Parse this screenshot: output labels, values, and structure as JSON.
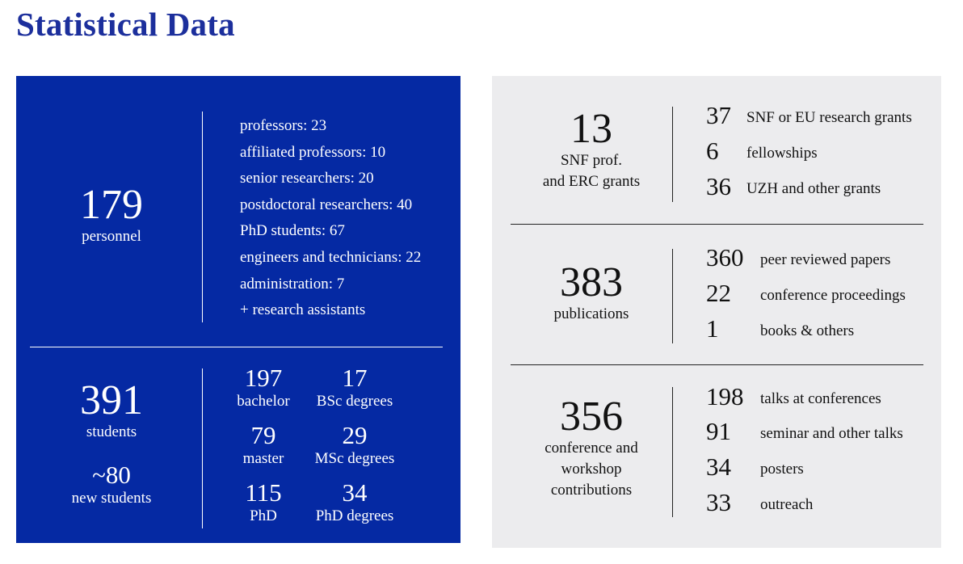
{
  "page_title": "Statistical Data",
  "personnel": {
    "total": "179",
    "label": "personnel",
    "breakdown": [
      "professors: 23",
      "affiliated professors: 10",
      "senior researchers: 20",
      "postdoctoral researchers: 40",
      "PhD students: 67",
      "engineers and technicians: 22",
      "administration: 7",
      "+ research assistants"
    ]
  },
  "students": {
    "total": "391",
    "label": "students",
    "new_total": "~80",
    "new_label": "new students",
    "grid": [
      {
        "enrolled": "197",
        "enrolled_label": "bachelor",
        "degrees": "17",
        "degrees_label": "BSc degrees"
      },
      {
        "enrolled": "79",
        "enrolled_label": "master",
        "degrees": "29",
        "degrees_label": "MSc degrees"
      },
      {
        "enrolled": "115",
        "enrolled_label": "PhD",
        "degrees": "34",
        "degrees_label": "PhD degrees"
      }
    ]
  },
  "grants": {
    "total": "13",
    "label_line1": "SNF prof.",
    "label_line2": "and ERC grants",
    "items": [
      {
        "value": "37",
        "label": "SNF or EU research grants"
      },
      {
        "value": "6",
        "label": "fellowships"
      },
      {
        "value": "36",
        "label": "UZH and other grants"
      }
    ]
  },
  "publications": {
    "total": "383",
    "label": "publications",
    "items": [
      {
        "value": "360",
        "label": "peer reviewed papers"
      },
      {
        "value": "22",
        "label": "conference proceedings"
      },
      {
        "value": "1",
        "label": "books & others"
      }
    ]
  },
  "contributions": {
    "total": "356",
    "label_line1": "conference and",
    "label_line2": "workshop",
    "label_line3": "contributions",
    "items": [
      {
        "value": "198",
        "label": "talks at conferences"
      },
      {
        "value": "91",
        "label": "seminar and other talks"
      },
      {
        "value": "34",
        "label": "posters"
      },
      {
        "value": "33",
        "label": "outreach"
      }
    ]
  },
  "colors": {
    "title": "#1c2f9c",
    "blue_panel": "#0529a3",
    "grey_panel": "#ececee"
  }
}
